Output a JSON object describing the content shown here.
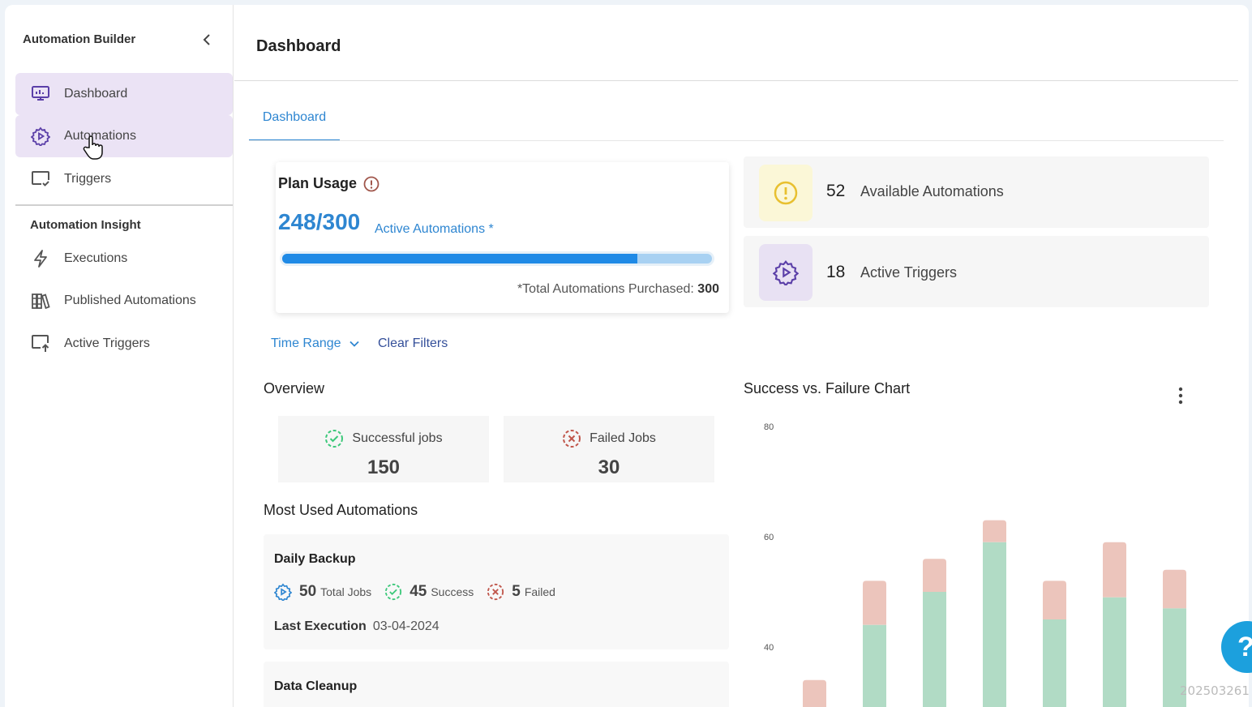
{
  "sidebar": {
    "title": "Automation Builder",
    "items": [
      {
        "label": "Dashboard",
        "icon": "monitor-chart-icon"
      },
      {
        "label": "Automations",
        "icon": "gear-play-icon"
      },
      {
        "label": "Triggers",
        "icon": "screen-check-icon"
      }
    ],
    "section_title": "Automation Insight",
    "insight_items": [
      {
        "label": "Executions",
        "icon": "lightning-icon"
      },
      {
        "label": "Published Automations",
        "icon": "books-icon"
      },
      {
        "label": "Active Triggers",
        "icon": "screen-upload-icon"
      }
    ]
  },
  "header": {
    "title": "Dashboard"
  },
  "tabs": [
    {
      "label": "Dashboard"
    }
  ],
  "plan": {
    "title": "Plan Usage",
    "count": "248/300",
    "label": "Active Automations *",
    "usage_fraction": 0.827,
    "total_text": "*Total Automations Purchased: ",
    "total_value": "300"
  },
  "stats": {
    "available": {
      "value": "52",
      "label": "Available Automations"
    },
    "triggers": {
      "value": "18",
      "label": "Active Triggers"
    }
  },
  "filters": {
    "time_range": "Time Range",
    "clear": "Clear Filters"
  },
  "overview": {
    "title": "Overview",
    "successful": {
      "label": "Successful jobs",
      "value": "150"
    },
    "failed": {
      "label": "Failed Jobs",
      "value": "30"
    }
  },
  "most_used": {
    "title": "Most Used Automations",
    "items": [
      {
        "name": "Daily Backup",
        "total": "50",
        "total_label": "Total Jobs",
        "success": "45",
        "success_label": "Success",
        "failed": "5",
        "failed_label": "Failed",
        "last_label": "Last Execution",
        "last_value": "03-04-2024"
      },
      {
        "name": "Data Cleanup"
      }
    ]
  },
  "chart_data": {
    "type": "bar",
    "title": "Success vs. Failure Chart",
    "stacked": true,
    "ylim": [
      0,
      80
    ],
    "yticks": [
      40,
      60,
      80
    ],
    "series": [
      {
        "values": [
          29,
          44,
          50,
          59,
          45,
          49,
          47
        ]
      },
      {
        "values": [
          5,
          8,
          6,
          4,
          7,
          10,
          7
        ]
      }
    ],
    "colors": [
      "#b1dbc5",
      "#ecc5bc"
    ]
  },
  "colors": {
    "accent": "#2e86d1",
    "active_bg": "#ebe3f5",
    "success": "#3cc87a",
    "failure": "#c0564b"
  },
  "help": {
    "label": "?"
  },
  "stamp": "202503261"
}
